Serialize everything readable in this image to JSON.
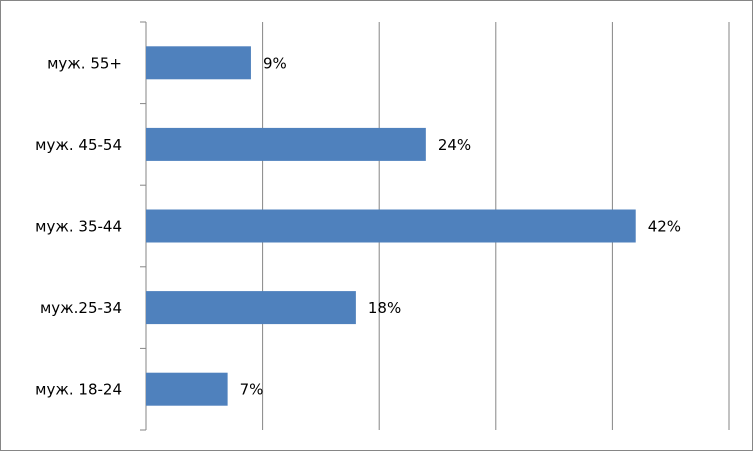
{
  "chart_data": {
    "type": "bar",
    "orientation": "horizontal",
    "categories": [
      "муж. 55+",
      "муж. 45-54",
      "муж. 35-44",
      "муж.25-34",
      "муж. 18-24"
    ],
    "values": [
      9,
      24,
      42,
      18,
      7
    ],
    "value_labels": [
      "9%",
      "24%",
      "42%",
      "18%",
      "7%"
    ],
    "color": "#4f81bd",
    "xlim": [
      0,
      50
    ],
    "xticks": [
      0,
      10,
      20,
      30,
      40,
      50
    ],
    "grid": true
  }
}
